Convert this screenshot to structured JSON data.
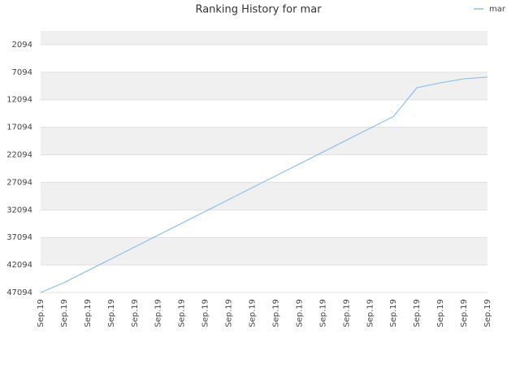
{
  "chart_data": {
    "type": "line",
    "title": "Ranking History for mar",
    "categories": [
      "Sep.19",
      "Sep.19",
      "Sep.19",
      "Sep.19",
      "Sep.19",
      "Sep.19",
      "Sep.19",
      "Sep.19",
      "Sep.19",
      "Sep.19",
      "Sep.19",
      "Sep.19",
      "Sep.19",
      "Sep.19",
      "Sep.19",
      "Sep.19",
      "Sep.19",
      "Sep.19",
      "Sep.19",
      "Sep.19"
    ],
    "series": [
      {
        "name": "mar",
        "color": "#8cc0f0",
        "values": [
          47094,
          45297,
          43143,
          40989,
          38835,
          36681,
          34527,
          32373,
          30219,
          28065,
          25911,
          23757,
          21603,
          19449,
          17295,
          15141,
          9911,
          9026,
          8289,
          7994
        ]
      }
    ],
    "ylim": [
      47094,
      -406
    ],
    "yticks": [
      2094,
      7094,
      12094,
      17094,
      22094,
      27094,
      32094,
      37094,
      42094,
      47094
    ],
    "grid": true,
    "legend": "top-right"
  }
}
